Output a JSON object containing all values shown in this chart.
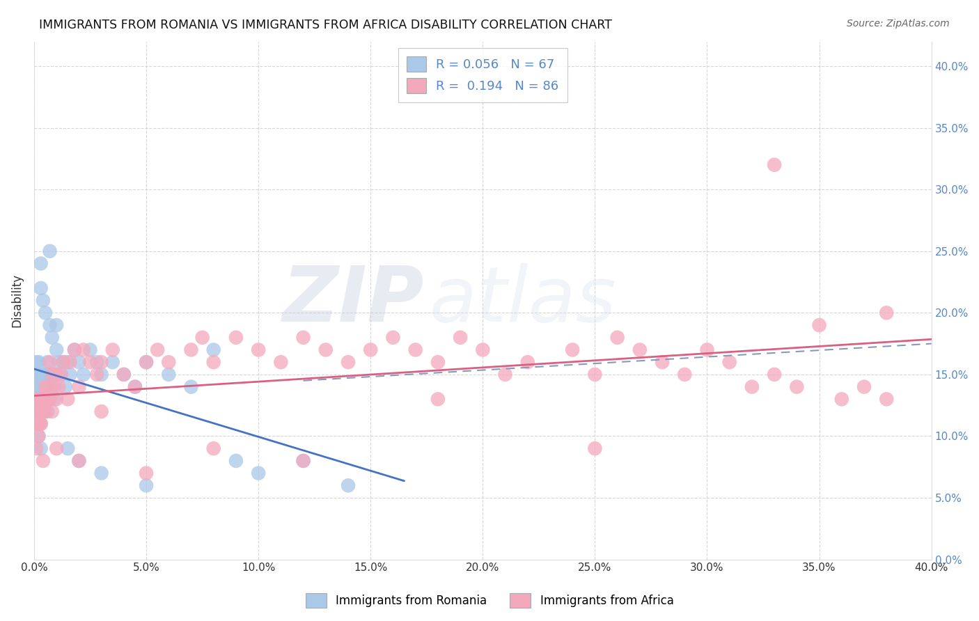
{
  "title": "IMMIGRANTS FROM ROMANIA VS IMMIGRANTS FROM AFRICA DISABILITY CORRELATION CHART",
  "source": "Source: ZipAtlas.com",
  "ylabel": "Disability",
  "xlim": [
    0.0,
    0.4
  ],
  "ylim": [
    0.0,
    0.42
  ],
  "xticks": [
    0.0,
    0.05,
    0.1,
    0.15,
    0.2,
    0.25,
    0.3,
    0.35,
    0.4
  ],
  "yticks": [
    0.0,
    0.05,
    0.1,
    0.15,
    0.2,
    0.25,
    0.3,
    0.35,
    0.4
  ],
  "romania_R": 0.056,
  "romania_N": 67,
  "africa_R": 0.194,
  "africa_N": 86,
  "romania_color": "#aac8e8",
  "africa_color": "#f4a8bc",
  "romania_line_color": "#4472c4",
  "africa_line_color": "#d96080",
  "dashed_line_color": "#8899bb",
  "right_tick_color": "#5588cc",
  "grid_color": "#cccccc",
  "background_color": "#ffffff",
  "romania_x": [
    0.001,
    0.001,
    0.001,
    0.001,
    0.001,
    0.002,
    0.002,
    0.002,
    0.002,
    0.002,
    0.002,
    0.002,
    0.003,
    0.003,
    0.003,
    0.003,
    0.003,
    0.003,
    0.004,
    0.004,
    0.004,
    0.004,
    0.005,
    0.005,
    0.005,
    0.005,
    0.006,
    0.006,
    0.006,
    0.007,
    0.007,
    0.008,
    0.008,
    0.009,
    0.009,
    0.01,
    0.01,
    0.011,
    0.012,
    0.013,
    0.014,
    0.015,
    0.016,
    0.018,
    0.02,
    0.022,
    0.025,
    0.028,
    0.03,
    0.035,
    0.04,
    0.045,
    0.05,
    0.06,
    0.07,
    0.08,
    0.09,
    0.1,
    0.12,
    0.14,
    0.003,
    0.007,
    0.01,
    0.015,
    0.02,
    0.03,
    0.05
  ],
  "romania_y": [
    0.13,
    0.14,
    0.15,
    0.12,
    0.16,
    0.13,
    0.14,
    0.15,
    0.12,
    0.11,
    0.16,
    0.1,
    0.13,
    0.14,
    0.15,
    0.12,
    0.22,
    0.09,
    0.13,
    0.14,
    0.15,
    0.21,
    0.14,
    0.15,
    0.13,
    0.2,
    0.14,
    0.16,
    0.12,
    0.15,
    0.19,
    0.14,
    0.18,
    0.15,
    0.13,
    0.15,
    0.17,
    0.16,
    0.15,
    0.16,
    0.14,
    0.16,
    0.15,
    0.17,
    0.16,
    0.15,
    0.17,
    0.16,
    0.15,
    0.16,
    0.15,
    0.14,
    0.16,
    0.15,
    0.14,
    0.17,
    0.08,
    0.07,
    0.08,
    0.06,
    0.24,
    0.25,
    0.19,
    0.09,
    0.08,
    0.07,
    0.06
  ],
  "africa_x": [
    0.001,
    0.001,
    0.001,
    0.002,
    0.002,
    0.002,
    0.003,
    0.003,
    0.003,
    0.004,
    0.004,
    0.005,
    0.005,
    0.005,
    0.006,
    0.006,
    0.007,
    0.007,
    0.008,
    0.008,
    0.009,
    0.01,
    0.01,
    0.011,
    0.012,
    0.013,
    0.015,
    0.016,
    0.018,
    0.02,
    0.022,
    0.025,
    0.028,
    0.03,
    0.035,
    0.04,
    0.045,
    0.05,
    0.055,
    0.06,
    0.07,
    0.075,
    0.08,
    0.09,
    0.1,
    0.11,
    0.12,
    0.13,
    0.14,
    0.15,
    0.16,
    0.17,
    0.18,
    0.19,
    0.2,
    0.21,
    0.22,
    0.24,
    0.25,
    0.26,
    0.27,
    0.28,
    0.29,
    0.3,
    0.31,
    0.32,
    0.33,
    0.34,
    0.35,
    0.36,
    0.37,
    0.38,
    0.001,
    0.002,
    0.003,
    0.004,
    0.01,
    0.02,
    0.03,
    0.05,
    0.08,
    0.12,
    0.18,
    0.25,
    0.33,
    0.38
  ],
  "africa_y": [
    0.12,
    0.13,
    0.11,
    0.13,
    0.12,
    0.11,
    0.13,
    0.12,
    0.11,
    0.13,
    0.12,
    0.13,
    0.14,
    0.12,
    0.13,
    0.14,
    0.16,
    0.13,
    0.12,
    0.15,
    0.14,
    0.13,
    0.15,
    0.14,
    0.15,
    0.16,
    0.13,
    0.16,
    0.17,
    0.14,
    0.17,
    0.16,
    0.15,
    0.16,
    0.17,
    0.15,
    0.14,
    0.16,
    0.17,
    0.16,
    0.17,
    0.18,
    0.16,
    0.18,
    0.17,
    0.16,
    0.18,
    0.17,
    0.16,
    0.17,
    0.18,
    0.17,
    0.16,
    0.18,
    0.17,
    0.15,
    0.16,
    0.17,
    0.15,
    0.18,
    0.17,
    0.16,
    0.15,
    0.17,
    0.16,
    0.14,
    0.15,
    0.14,
    0.19,
    0.13,
    0.14,
    0.13,
    0.09,
    0.1,
    0.11,
    0.08,
    0.09,
    0.08,
    0.12,
    0.07,
    0.09,
    0.08,
    0.13,
    0.09,
    0.32,
    0.2
  ]
}
